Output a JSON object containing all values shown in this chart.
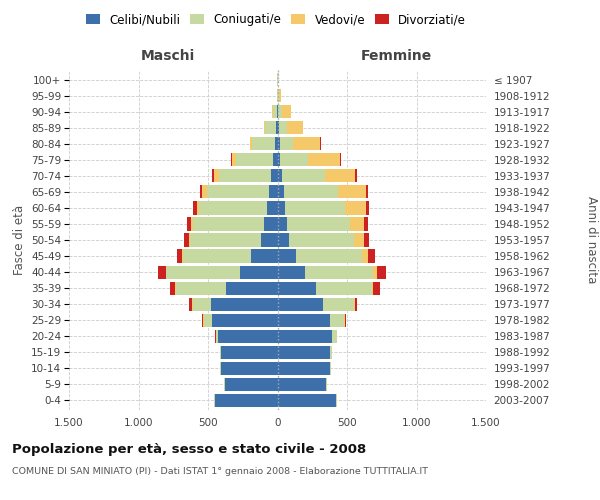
{
  "age_groups": [
    "0-4",
    "5-9",
    "10-14",
    "15-19",
    "20-24",
    "25-29",
    "30-34",
    "35-39",
    "40-44",
    "45-49",
    "50-54",
    "55-59",
    "60-64",
    "65-69",
    "70-74",
    "75-79",
    "80-84",
    "85-89",
    "90-94",
    "95-99",
    "100+"
  ],
  "birth_years": [
    "2003-2007",
    "1998-2002",
    "1993-1997",
    "1988-1992",
    "1983-1987",
    "1978-1982",
    "1973-1977",
    "1968-1972",
    "1963-1967",
    "1958-1962",
    "1953-1957",
    "1948-1952",
    "1943-1947",
    "1938-1942",
    "1933-1937",
    "1928-1932",
    "1923-1927",
    "1918-1922",
    "1913-1917",
    "1908-1912",
    "≤ 1907"
  ],
  "males": {
    "celibi": [
      450,
      380,
      410,
      410,
      430,
      470,
      480,
      370,
      270,
      190,
      120,
      100,
      75,
      60,
      50,
      30,
      20,
      10,
      5,
      0,
      0
    ],
    "coniugati": [
      5,
      5,
      5,
      5,
      15,
      60,
      130,
      360,
      530,
      490,
      510,
      510,
      490,
      450,
      370,
      270,
      160,
      80,
      30,
      5,
      2
    ],
    "vedovi": [
      0,
      0,
      0,
      0,
      0,
      5,
      5,
      5,
      5,
      5,
      5,
      10,
      15,
      30,
      40,
      30,
      15,
      10,
      5,
      0,
      0
    ],
    "divorziati": [
      0,
      0,
      0,
      0,
      5,
      5,
      20,
      40,
      55,
      40,
      35,
      30,
      25,
      15,
      10,
      5,
      0,
      0,
      0,
      0,
      0
    ]
  },
  "females": {
    "nubili": [
      420,
      350,
      380,
      380,
      390,
      380,
      330,
      280,
      200,
      130,
      80,
      65,
      55,
      45,
      30,
      20,
      15,
      10,
      5,
      0,
      0
    ],
    "coniugate": [
      5,
      5,
      5,
      10,
      35,
      100,
      220,
      400,
      490,
      480,
      470,
      455,
      430,
      390,
      310,
      200,
      100,
      55,
      30,
      8,
      2
    ],
    "vedove": [
      0,
      0,
      0,
      0,
      0,
      5,
      5,
      10,
      25,
      40,
      70,
      100,
      150,
      200,
      220,
      230,
      190,
      120,
      65,
      15,
      2
    ],
    "divorziate": [
      0,
      0,
      0,
      0,
      5,
      5,
      20,
      50,
      65,
      55,
      40,
      30,
      25,
      15,
      10,
      5,
      5,
      0,
      0,
      0,
      0
    ]
  },
  "colors": {
    "celibi": "#3d6faa",
    "coniugati": "#c5d9a0",
    "vedovi": "#f5c96a",
    "divorziati": "#cc2222"
  },
  "xlim": 1500,
  "title": "Popolazione per età, sesso e stato civile - 2008",
  "subtitle": "COMUNE DI SAN MINIATO (PI) - Dati ISTAT 1° gennaio 2008 - Elaborazione TUTTITALIA.IT",
  "ylabel_left": "Fasce di età",
  "ylabel_right": "Anni di nascita",
  "xlabel_left": "Maschi",
  "xlabel_right": "Femmine",
  "background_color": "#ffffff",
  "grid_color": "#cccccc"
}
